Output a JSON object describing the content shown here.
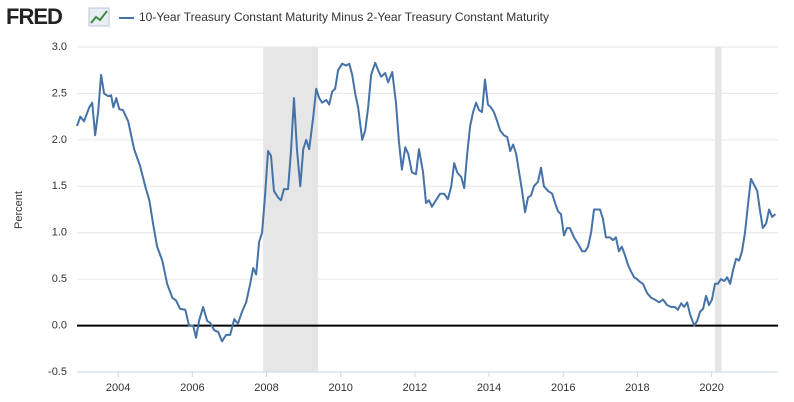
{
  "logo": "FRED",
  "chart_data": {
    "type": "line",
    "ylabel": "Percent",
    "xlim": [
      2002.89,
      2021.79
    ],
    "xticks": [
      2004,
      2006,
      2008,
      2010,
      2012,
      2014,
      2016,
      2018,
      2020
    ],
    "ylim": [
      -0.5,
      3.0
    ],
    "yticks": [
      {
        "value": 3.0,
        "label": "3.0"
      },
      {
        "value": 2.5,
        "label": "2.5"
      },
      {
        "value": 2.0,
        "label": "2.0"
      },
      {
        "value": 1.5,
        "label": "1.5"
      },
      {
        "value": 1.0,
        "label": "1.0"
      },
      {
        "value": 0.5,
        "label": "0.5"
      },
      {
        "value": 0,
        "label": "0.0"
      },
      -0.5
    ],
    "grid": true,
    "recessions": [
      [
        2007.91,
        2009.39
      ],
      [
        2020.09,
        2020.27
      ]
    ],
    "x": [
      2002.89,
      2002.98,
      2003.08,
      2003.22,
      2003.3,
      2003.38,
      2003.46,
      2003.54,
      2003.62,
      2003.73,
      2003.81,
      2003.87,
      2003.95,
      2004.03,
      2004.13,
      2004.27,
      2004.43,
      2004.59,
      2004.73,
      2004.84,
      2004.94,
      2005.05,
      2005.19,
      2005.32,
      2005.46,
      2005.56,
      2005.67,
      2005.81,
      2005.91,
      2006.02,
      2006.1,
      2006.18,
      2006.29,
      2006.4,
      2006.48,
      2006.59,
      2006.7,
      2006.8,
      2006.91,
      2007.02,
      2007.13,
      2007.23,
      2007.34,
      2007.45,
      2007.56,
      2007.64,
      2007.72,
      2007.8,
      2007.88,
      2007.96,
      2008.04,
      2008.12,
      2008.2,
      2008.31,
      2008.39,
      2008.47,
      2008.58,
      2008.66,
      2008.74,
      2008.82,
      2008.91,
      2008.99,
      2009.07,
      2009.15,
      2009.26,
      2009.34,
      2009.42,
      2009.5,
      2009.61,
      2009.69,
      2009.77,
      2009.85,
      2009.93,
      2010.04,
      2010.15,
      2010.23,
      2010.31,
      2010.39,
      2010.47,
      2010.58,
      2010.66,
      2010.74,
      2010.82,
      2010.93,
      2011.01,
      2011.09,
      2011.2,
      2011.28,
      2011.39,
      2011.49,
      2011.57,
      2011.65,
      2011.74,
      2011.82,
      2011.92,
      2012.03,
      2012.11,
      2012.22,
      2012.3,
      2012.38,
      2012.46,
      2012.57,
      2012.68,
      2012.79,
      2012.89,
      2012.98,
      2013.06,
      2013.14,
      2013.25,
      2013.33,
      2013.41,
      2013.49,
      2013.57,
      2013.65,
      2013.73,
      2013.81,
      2013.89,
      2013.97,
      2014.05,
      2014.13,
      2014.22,
      2014.3,
      2014.4,
      2014.49,
      2014.57,
      2014.65,
      2014.73,
      2014.81,
      2014.89,
      2014.97,
      2015.05,
      2015.13,
      2015.21,
      2015.32,
      2015.4,
      2015.48,
      2015.59,
      2015.7,
      2015.78,
      2015.86,
      2015.94,
      2016.02,
      2016.1,
      2016.18,
      2016.29,
      2016.4,
      2016.51,
      2016.59,
      2016.67,
      2016.75,
      2016.83,
      2016.91,
      2016.99,
      2017.07,
      2017.15,
      2017.26,
      2017.34,
      2017.42,
      2017.5,
      2017.58,
      2017.67,
      2017.75,
      2017.83,
      2017.91,
      2017.99,
      2018.07,
      2018.15,
      2018.26,
      2018.37,
      2018.47,
      2018.58,
      2018.69,
      2018.8,
      2018.91,
      2019.01,
      2019.09,
      2019.18,
      2019.26,
      2019.34,
      2019.42,
      2019.53,
      2019.61,
      2019.69,
      2019.77,
      2019.85,
      2019.93,
      2020.01,
      2020.09,
      2020.17,
      2020.25,
      2020.34,
      2020.42,
      2020.5,
      2020.58,
      2020.66,
      2020.74,
      2020.82,
      2020.9,
      2020.98,
      2021.06,
      2021.14,
      2021.23,
      2021.3,
      2021.38,
      2021.47,
      2021.55,
      2021.63,
      2021.72
    ],
    "series": [
      {
        "name": "10-Year Treasury Constant Maturity Minus 2-Year Treasury Constant Maturity",
        "color": "#4572a7",
        "values": [
          2.15,
          2.25,
          2.2,
          2.35,
          2.4,
          2.05,
          2.3,
          2.7,
          2.5,
          2.47,
          2.48,
          2.35,
          2.45,
          2.33,
          2.32,
          2.2,
          1.9,
          1.72,
          1.5,
          1.35,
          1.1,
          0.85,
          0.7,
          0.45,
          0.3,
          0.27,
          0.18,
          0.17,
          0.0,
          0.0,
          -0.13,
          0.05,
          0.2,
          0.05,
          0.03,
          -0.05,
          -0.07,
          -0.17,
          -0.1,
          -0.1,
          0.07,
          0.02,
          0.15,
          0.25,
          0.45,
          0.62,
          0.55,
          0.9,
          1.0,
          1.4,
          1.88,
          1.83,
          1.45,
          1.38,
          1.35,
          1.47,
          1.47,
          1.88,
          2.45,
          1.9,
          1.5,
          1.9,
          2.0,
          1.9,
          2.25,
          2.55,
          2.45,
          2.4,
          2.43,
          2.38,
          2.52,
          2.55,
          2.75,
          2.82,
          2.8,
          2.82,
          2.7,
          2.5,
          2.35,
          2.0,
          2.1,
          2.35,
          2.7,
          2.83,
          2.75,
          2.68,
          2.72,
          2.62,
          2.73,
          2.4,
          1.98,
          1.68,
          1.92,
          1.85,
          1.65,
          1.63,
          1.9,
          1.65,
          1.32,
          1.35,
          1.28,
          1.35,
          1.42,
          1.42,
          1.36,
          1.5,
          1.75,
          1.65,
          1.6,
          1.48,
          1.85,
          2.15,
          2.3,
          2.4,
          2.32,
          2.3,
          2.65,
          2.38,
          2.35,
          2.3,
          2.2,
          2.1,
          2.05,
          2.03,
          1.88,
          1.95,
          1.85,
          1.65,
          1.45,
          1.22,
          1.38,
          1.4,
          1.5,
          1.55,
          1.7,
          1.5,
          1.45,
          1.42,
          1.32,
          1.23,
          1.2,
          0.97,
          1.05,
          1.05,
          0.95,
          0.88,
          0.8,
          0.8,
          0.85,
          1.0,
          1.25,
          1.25,
          1.25,
          1.15,
          0.95,
          0.95,
          0.92,
          0.95,
          0.8,
          0.85,
          0.75,
          0.65,
          0.58,
          0.52,
          0.5,
          0.47,
          0.45,
          0.35,
          0.3,
          0.28,
          0.25,
          0.28,
          0.22,
          0.2,
          0.2,
          0.17,
          0.24,
          0.2,
          0.25,
          0.12,
          0.0,
          0.05,
          0.15,
          0.18,
          0.32,
          0.22,
          0.28,
          0.45,
          0.45,
          0.5,
          0.48,
          0.52,
          0.45,
          0.6,
          0.72,
          0.7,
          0.8,
          1.0,
          1.3,
          1.58,
          1.52,
          1.45,
          1.25,
          1.05,
          1.1,
          1.25,
          1.17,
          1.2
        ]
      }
    ]
  }
}
